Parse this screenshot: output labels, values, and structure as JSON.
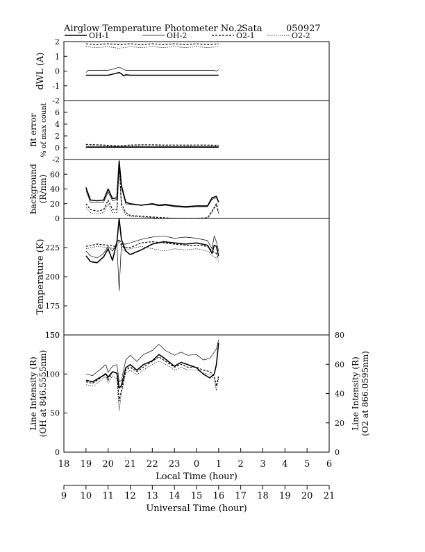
{
  "header": {
    "title": "Airglow Temperature Photometer No.2",
    "station": "Sata",
    "date": "050927"
  },
  "legend": [
    {
      "label": "OH-1",
      "style": "solid-thick"
    },
    {
      "label": "OH-2",
      "style": "solid-thin"
    },
    {
      "label": "O2-1",
      "style": "dashed-thick"
    },
    {
      "label": "O2-2",
      "style": "dotted-thin"
    }
  ],
  "chart_data": {
    "type": "line",
    "x_axes": {
      "local": {
        "label": "Local Time (hour)",
        "ticks": [
          "18",
          "19",
          "20",
          "21",
          "22",
          "23",
          "0",
          "1",
          "2",
          "3",
          "4",
          "5",
          "6"
        ],
        "range": [
          18,
          30
        ]
      },
      "universal": {
        "label": "Universal Time (hour)",
        "ticks": [
          "9",
          "10",
          "11",
          "12",
          "13",
          "14",
          "15",
          "16",
          "17",
          "18",
          "19",
          "20",
          "21"
        ],
        "range": [
          9,
          21
        ]
      }
    },
    "panels": [
      {
        "id": "dwl",
        "ylabel": "dWL (A)",
        "ylim": [
          -2,
          2
        ],
        "yticks": [
          "-2",
          "-1",
          "0",
          "1",
          "2"
        ],
        "series": [
          {
            "name": "OH-1",
            "x": [
              19,
              20,
              20.5,
              20.6,
              20.7,
              20.8,
              21,
              22,
              23,
              24,
              24.8,
              25
            ],
            "y": [
              -0.28,
              -0.28,
              -0.1,
              -0.18,
              -0.32,
              -0.25,
              -0.28,
              -0.28,
              -0.28,
              -0.28,
              -0.28,
              -0.28
            ]
          },
          {
            "name": "OH-2",
            "x": [
              19,
              19.1,
              20,
              20.5,
              20.6,
              20.8,
              21,
              22,
              23,
              24,
              24.8,
              24.9,
              25
            ],
            "y": [
              -0.1,
              0.05,
              0.05,
              0.25,
              0.2,
              0.05,
              0.05,
              0.05,
              0.05,
              0.05,
              0.05,
              0.0,
              0.1
            ]
          },
          {
            "name": "O2-1",
            "x": [
              19,
              19.5,
              20,
              20.5,
              21,
              21.5,
              22,
              22.5,
              23,
              23.5,
              24,
              24.5,
              25
            ],
            "y": [
              1.85,
              1.8,
              1.85,
              1.8,
              1.85,
              1.8,
              1.85,
              1.8,
              1.85,
              1.8,
              1.85,
              1.8,
              1.85
            ]
          },
          {
            "name": "O2-2",
            "x": [
              19,
              19.5,
              20,
              20.5,
              21,
              21.5,
              22,
              22.5,
              23,
              23.5,
              24,
              24.5,
              25
            ],
            "y": [
              1.65,
              1.6,
              1.65,
              1.55,
              1.65,
              1.6,
              1.65,
              1.6,
              1.65,
              1.6,
              1.65,
              1.6,
              1.65
            ]
          }
        ]
      },
      {
        "id": "fit-error",
        "ylabel": "fit error",
        "ylabel2": "% of max count",
        "ylim": [
          -2,
          8
        ],
        "yticks": [
          "-2",
          "0",
          "2",
          "4",
          "6"
        ],
        "series": [
          {
            "name": "OH-1",
            "x": [
              19,
              20,
              21,
              22,
              23,
              24,
              25
            ],
            "y": [
              0.1,
              0.1,
              0.1,
              0.1,
              0.1,
              0.1,
              0.1
            ]
          },
          {
            "name": "OH-2",
            "x": [
              19,
              20,
              21,
              22,
              23,
              24,
              25
            ],
            "y": [
              0.15,
              0.15,
              0.15,
              0.15,
              0.15,
              0.15,
              0.15
            ]
          },
          {
            "name": "O2-1",
            "x": [
              19,
              19.5,
              20,
              20.5,
              21,
              21.5,
              22,
              22.5,
              23,
              23.5,
              24,
              24.5,
              25
            ],
            "y": [
              0.55,
              0.5,
              0.4,
              0.3,
              0.45,
              0.5,
              0.5,
              0.45,
              0.45,
              0.45,
              0.45,
              0.45,
              0.4
            ]
          },
          {
            "name": "O2-2",
            "x": [
              19,
              19.5,
              20,
              20.5,
              21,
              22,
              23,
              24,
              25
            ],
            "y": [
              0.35,
              0.3,
              0.25,
              0.2,
              0.25,
              0.3,
              0.25,
              0.25,
              0.25
            ]
          }
        ]
      },
      {
        "id": "background",
        "ylabel": "background",
        "ylabel2": "(R/nm)",
        "ylim": [
          0,
          80
        ],
        "yticks": [
          "0",
          "20",
          "40",
          "60"
        ],
        "series": [
          {
            "name": "OH-1",
            "x": [
              19,
              19.2,
              19.5,
              19.8,
              20,
              20.2,
              20.4,
              20.5,
              20.6,
              20.8,
              21,
              21.5,
              22,
              22.3,
              22.6,
              23,
              23.5,
              24,
              24.5,
              24.7,
              24.9,
              25
            ],
            "y": [
              42,
              25,
              24,
              25,
              40,
              27,
              28,
              78,
              45,
              22,
              20,
              18,
              20,
              18,
              19,
              17,
              16,
              17,
              17,
              28,
              30,
              22
            ]
          },
          {
            "name": "OH-2",
            "x": [
              19,
              19.2,
              19.5,
              19.8,
              20,
              20.2,
              20.4,
              20.5,
              20.6,
              20.8,
              21,
              21.5,
              22,
              22.3,
              22.6,
              23,
              23.5,
              24,
              24.5,
              24.7,
              24.9,
              25
            ],
            "y": [
              38,
              22,
              22,
              22,
              36,
              24,
              26,
              75,
              42,
              20,
              19,
              18,
              19,
              17,
              18,
              16,
              15,
              16,
              16,
              26,
              28,
              22
            ]
          },
          {
            "name": "O2-1",
            "x": [
              19,
              19.2,
              19.5,
              19.8,
              20,
              20.2,
              20.4,
              20.5,
              20.6,
              20.8,
              21,
              21.5,
              22,
              22.5,
              23,
              23.5,
              24,
              24.5,
              24.7,
              24.9,
              25
            ],
            "y": [
              20,
              12,
              10,
              12,
              25,
              12,
              12,
              74,
              20,
              8,
              4,
              3,
              2,
              1,
              0,
              0,
              0,
              1,
              10,
              20,
              8
            ]
          },
          {
            "name": "O2-2",
            "x": [
              19,
              19.2,
              19.5,
              19.8,
              20,
              20.2,
              20.4,
              20.5,
              20.6,
              20.8,
              21,
              21.5,
              22,
              22.5,
              23,
              23.5,
              24,
              24.5,
              24.7,
              24.9,
              25
            ],
            "y": [
              15,
              8,
              6,
              8,
              20,
              8,
              8,
              72,
              15,
              5,
              3,
              2,
              1,
              0,
              0,
              0,
              0,
              0,
              8,
              18,
              6
            ]
          }
        ]
      },
      {
        "id": "temperature",
        "ylabel": "Temperature (K)",
        "ylim": [
          150,
          250
        ],
        "yticks": [
          "150",
          "175",
          "200",
          "225"
        ],
        "series": [
          {
            "name": "OH-1",
            "x": [
              19,
              19.2,
              19.5,
              19.8,
              20,
              20.2,
              20.4,
              20.5,
              20.6,
              20.8,
              21,
              21.5,
              22,
              22.5,
              23,
              23.5,
              24,
              24.5,
              24.7,
              24.8,
              24.9,
              25
            ],
            "y": [
              218,
              213,
              212,
              217,
              224,
              214,
              230,
              250,
              232,
              222,
              219,
              223,
              228,
              230,
              229,
              228,
              229,
              227,
              220,
              227,
              226,
              218
            ]
          },
          {
            "name": "OH-2",
            "x": [
              19,
              19.2,
              19.5,
              19.8,
              20,
              20.2,
              20.4,
              20.5,
              20.6,
              20.8,
              21,
              21.5,
              22,
              22.5,
              23,
              23.5,
              24,
              24.5,
              24.7,
              24.8,
              24.9,
              25
            ],
            "y": [
              222,
              218,
              216,
              220,
              226,
              222,
              228,
              188,
              228,
              228,
              229,
              232,
              234,
              235,
              233,
              234,
              233,
              231,
              224,
              235,
              230,
              222
            ]
          },
          {
            "name": "O2-1",
            "x": [
              19,
              19.5,
              20,
              20.3,
              20.5,
              20.7,
              21,
              21.5,
              22,
              22.5,
              23,
              23.5,
              24,
              24.5,
              24.7,
              24.9,
              25
            ],
            "y": [
              226,
              228,
              227,
              226,
              232,
              225,
              225,
              229,
              230,
              229,
              228,
              227,
              227,
              226,
              222,
              220,
              215
            ]
          },
          {
            "name": "O2-2",
            "x": [
              19,
              19.5,
              20,
              20.3,
              20.5,
              20.7,
              21,
              21.5,
              22,
              22.5,
              23,
              23.5,
              24,
              24.5,
              24.7,
              24.9,
              25
            ],
            "y": [
              224,
              226,
              225,
              224,
              230,
              222,
              224,
              226,
              224,
              222,
              224,
              223,
              224,
              222,
              218,
              216,
              213
            ]
          }
        ]
      },
      {
        "id": "intensity",
        "ylabel": "Line Intensity (R)",
        "ylabel2": "(OH at 846.5555nm)",
        "ylim": [
          0,
          150
        ],
        "yticks": [
          "0",
          "50",
          "100",
          "150"
        ],
        "right_axis": {
          "ylabel": "Line Intensity (R)",
          "ylabel2": "(O2 at 866.0595nm)",
          "ylim": [
            0,
            80
          ],
          "yticks": [
            "0",
            "20",
            "40",
            "60",
            "80"
          ]
        },
        "series": [
          {
            "name": "OH-1",
            "x": [
              19,
              19.3,
              19.6,
              19.9,
              20,
              20.2,
              20.4,
              20.5,
              20.6,
              20.8,
              21,
              21.3,
              21.6,
              22,
              22.3,
              22.6,
              23,
              23.3,
              23.6,
              24,
              24.3,
              24.6,
              24.8,
              24.9,
              25
            ],
            "y": [
              92,
              90,
              95,
              100,
              96,
              103,
              101,
              82,
              85,
              108,
              112,
              105,
              112,
              117,
              125,
              119,
              110,
              115,
              112,
              108,
              100,
              95,
              100,
              112,
              140
            ]
          },
          {
            "name": "OH-2",
            "x": [
              19,
              19.3,
              19.6,
              19.9,
              20,
              20.2,
              20.4,
              20.5,
              20.6,
              20.8,
              21,
              21.3,
              21.6,
              22,
              22.3,
              22.6,
              23,
              23.3,
              23.6,
              24,
              24.3,
              24.6,
              24.8,
              24.9,
              25
            ],
            "y": [
              100,
              98,
              105,
              112,
              102,
              110,
              112,
              90,
              92,
              118,
              124,
              116,
              125,
              130,
              138,
              130,
              124,
              128,
              124,
              125,
              118,
              120,
              128,
              132,
              144
            ]
          },
          {
            "name": "O2-1",
            "x": [
              19,
              19.3,
              19.6,
              19.9,
              20,
              20.2,
              20.4,
              20.5,
              20.6,
              20.8,
              21,
              21.3,
              21.6,
              22,
              22.3,
              22.6,
              23,
              23.3,
              23.6,
              24,
              24.3,
              24.6,
              24.8,
              24.9,
              25
            ],
            "y": [
              48,
              47,
              50,
              54,
              49,
              55,
              54,
              35,
              42,
              56,
              58,
              55,
              58,
              62,
              65,
              62,
              58,
              60,
              58,
              58,
              56,
              55,
              52,
              45,
              52
            ]
          },
          {
            "name": "O2-2",
            "x": [
              19,
              19.3,
              19.6,
              19.9,
              20,
              20.2,
              20.4,
              20.5,
              20.6,
              20.8,
              21,
              21.3,
              21.6,
              22,
              22.3,
              22.6,
              23,
              23.3,
              23.6,
              24,
              24.3,
              24.6,
              24.8,
              24.9,
              25
            ],
            "y": [
              46,
              45,
              48,
              52,
              47,
              52,
              50,
              28,
              40,
              54,
              56,
              53,
              56,
              60,
              62,
              60,
              56,
              58,
              56,
              56,
              54,
              53,
              50,
              42,
              50
            ]
          }
        ]
      }
    ]
  }
}
